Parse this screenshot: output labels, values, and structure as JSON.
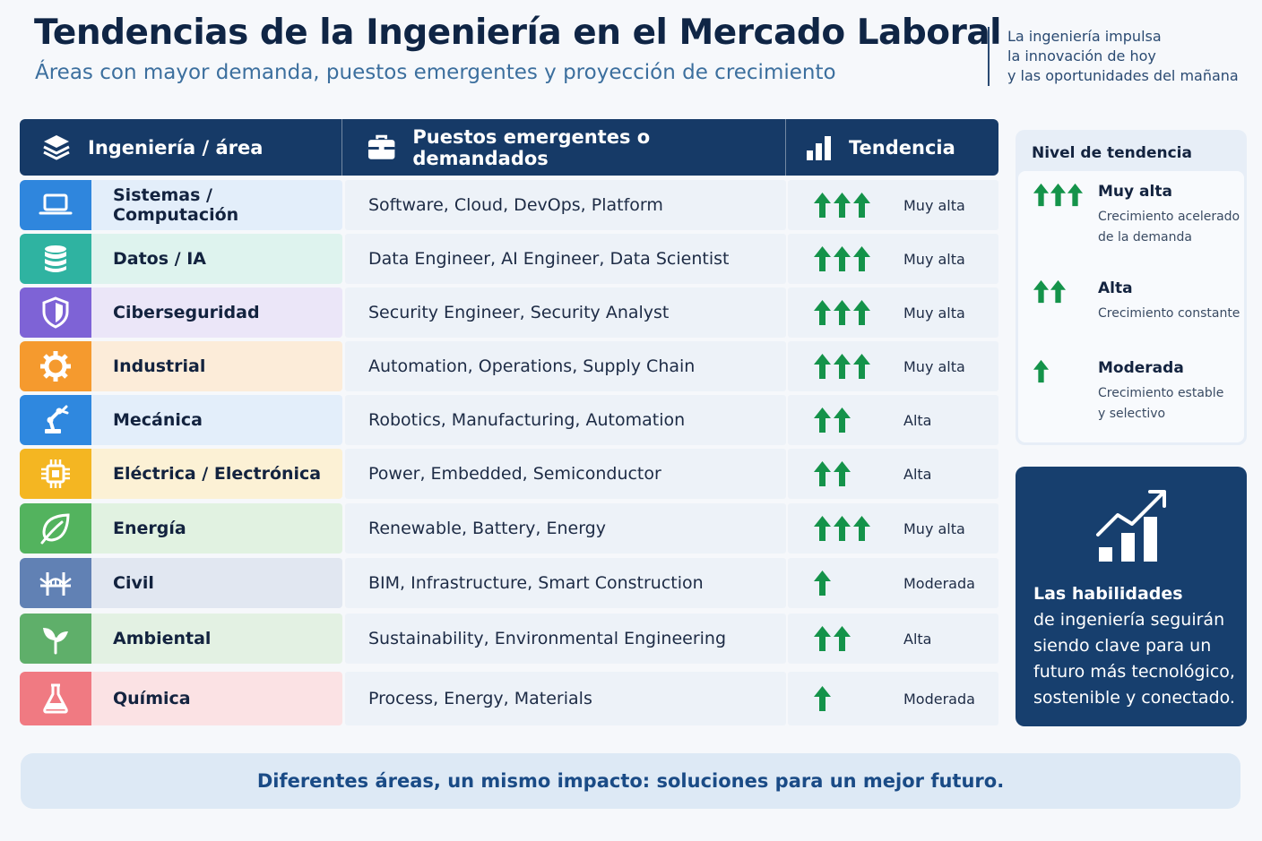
{
  "header": {
    "title": "Tendencias de la Ingeniería en el Mercado Laboral",
    "subtitle": "Áreas con mayor demanda, puestos emergentes y proyección de crecimiento",
    "tagline": [
      "La ingeniería impulsa",
      "la innovación de hoy",
      "y las oportunidades del mañana"
    ]
  },
  "table": {
    "headers": {
      "area": "Ingeniería / área",
      "roles": "Puestos emergentes o demandados",
      "trend": "Tendencia"
    },
    "rows": [
      {
        "area": "Sistemas / Computación",
        "roles": "Software, Cloud, DevOps, Platform",
        "trend": "Muy alta",
        "level": 3,
        "icon": "laptop-icon",
        "icon_color": "#2f86dd",
        "tint": "#e3eefa"
      },
      {
        "area": "Datos / IA",
        "roles": "Data Engineer, AI Engineer, Data Scientist",
        "trend": "Muy alta",
        "level": 3,
        "icon": "database-icon",
        "icon_color": "#2fb3a1",
        "tint": "#def3ee"
      },
      {
        "area": "Ciberseguridad",
        "roles": "Security Engineer, Security Analyst",
        "trend": "Muy alta",
        "level": 3,
        "icon": "shield-icon",
        "icon_color": "#7e63d6",
        "tint": "#ebe6f8"
      },
      {
        "area": "Industrial",
        "roles": "Automation, Operations, Supply Chain",
        "trend": "Muy alta",
        "level": 3,
        "icon": "gear-icon",
        "icon_color": "#f59a2e",
        "tint": "#fcecd9"
      },
      {
        "area": "Mecánica",
        "roles": "Robotics, Manufacturing, Automation",
        "trend": "Alta",
        "level": 2,
        "icon": "robot-arm-icon",
        "icon_color": "#2f88df",
        "tint": "#e3eefa"
      },
      {
        "area": "Eléctrica / Electrónica",
        "roles": "Power, Embedded, Semiconductor",
        "trend": "Alta",
        "level": 2,
        "icon": "chip-icon",
        "icon_color": "#f4b622",
        "tint": "#fcf1d5"
      },
      {
        "area": "Energía",
        "roles": "Renewable, Battery, Energy",
        "trend": "Muy alta",
        "level": 3,
        "icon": "leaf-icon",
        "icon_color": "#53b35e",
        "tint": "#e1f2e1"
      },
      {
        "area": "Civil",
        "roles": "BIM, Infrastructure, Smart Construction",
        "trend": "Moderada",
        "level": 1,
        "icon": "bridge-icon",
        "icon_color": "#6181b4",
        "tint": "#e1e7f1"
      },
      {
        "area": "Ambiental",
        "roles": "Sustainability, Environmental Engineering",
        "trend": "Alta",
        "level": 2,
        "icon": "sprout-icon",
        "icon_color": "#5faf6a",
        "tint": "#e3f1e3"
      },
      {
        "area": "Química",
        "roles": "Process, Energy, Materials",
        "trend": "Moderada",
        "level": 1,
        "icon": "flask-icon",
        "icon_color": "#f07a82",
        "tint": "#fbe2e4"
      }
    ]
  },
  "legend": {
    "title": "Nivel de tendencia",
    "items": [
      {
        "name": "Muy alta",
        "level": 3,
        "desc": [
          "Crecimiento acelerado",
          "de la demanda"
        ]
      },
      {
        "name": "Alta",
        "level": 2,
        "desc": [
          "Crecimiento constante"
        ]
      },
      {
        "name": "Moderada",
        "level": 1,
        "desc": [
          "Crecimiento estable",
          "y selectivo"
        ]
      }
    ]
  },
  "promo": {
    "lead": "Las habilidades",
    "body": "de ingeniería seguirán siendo clave para un futuro más tecnológico, sostenible y conectado."
  },
  "footer": "Diferentes áreas, un mismo impacto: soluciones para un mejor futuro.",
  "colors": {
    "arrow": "#14934a",
    "header_bg": "#163a67",
    "promo_bg": "#173f6e"
  }
}
